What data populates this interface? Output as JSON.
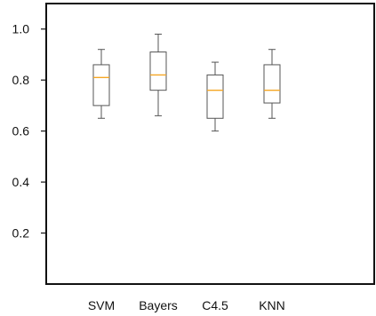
{
  "chart_data": {
    "type": "box",
    "title": "",
    "xlabel": "",
    "ylabel": "",
    "categories": [
      "SVM",
      "Bayers",
      "C4.5",
      "KNN"
    ],
    "ylim": [
      0.0,
      1.1
    ],
    "yticks": [
      0.2,
      0.4,
      0.6,
      0.8,
      1.0
    ],
    "ytick_labels": [
      "0.2",
      "0.4",
      "0.6",
      "0.8",
      "1.0"
    ],
    "grid": false,
    "boxes": [
      {
        "category": "SVM",
        "whislo": 0.65,
        "q1": 0.7,
        "med": 0.81,
        "q3": 0.86,
        "whishi": 0.92
      },
      {
        "category": "Bayers",
        "whislo": 0.66,
        "q1": 0.76,
        "med": 0.82,
        "q3": 0.91,
        "whishi": 0.98
      },
      {
        "category": "C4.5",
        "whislo": 0.6,
        "q1": 0.65,
        "med": 0.76,
        "q3": 0.82,
        "whishi": 0.87
      },
      {
        "category": "KNN",
        "whislo": 0.65,
        "q1": 0.71,
        "med": 0.76,
        "q3": 0.86,
        "whishi": 0.92
      }
    ],
    "colors": {
      "box": "#555555",
      "median": "#f5a623",
      "axis": "#111111"
    }
  }
}
